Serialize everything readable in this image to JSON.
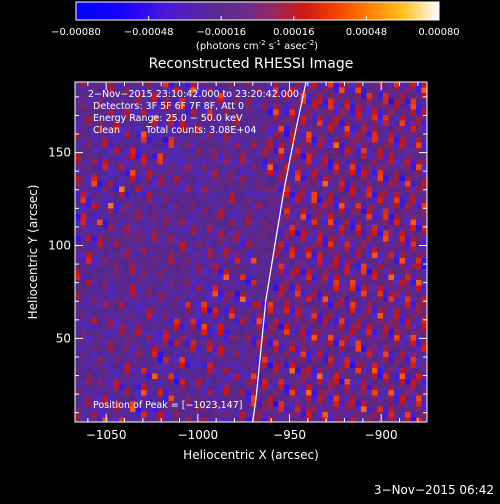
{
  "colorbar": {
    "tick_labels": [
      "-0.00080",
      "-0.00048",
      "-0.00016",
      "0.00016",
      "0.00048",
      "0.00080"
    ],
    "range": [
      -0.0008,
      0.0008
    ],
    "unit_text": "(photons cm",
    "unit_exp1": "-2",
    "unit_mid": " s",
    "unit_exp2": "-1",
    "unit_mid2": " asec",
    "unit_exp3": "-2",
    "unit_end": ")",
    "colors": [
      "#0000ff",
      "#2a0cff",
      "#5a2bd0",
      "#4c2a80",
      "#6a2a9a",
      "#8a2a70",
      "#b02030",
      "#e02000",
      "#ff5a00",
      "#ffa000",
      "#ffd040",
      "#ffffff"
    ]
  },
  "chart_data": {
    "type": "heatmap",
    "title": "Reconstructed RHESSI Image",
    "xlabel": "Heliocentric X (arcsec)",
    "ylabel": "Heliocentric Y (arcsec)",
    "xlim": [
      -1067,
      -875
    ],
    "ylim": [
      5,
      188
    ],
    "x_ticks": [
      -1050,
      -1000,
      -950,
      -900
    ],
    "x_tick_labels": [
      "−1050",
      "−1000",
      "−950",
      "−900"
    ],
    "y_ticks": [
      50,
      100,
      150
    ],
    "y_tick_labels": [
      "50",
      "100",
      "150"
    ],
    "limb_curve_x": [
      -941,
      -947,
      -953,
      -958,
      -963,
      -966,
      -968,
      -970
    ],
    "limb_curve_y": [
      188,
      160,
      130,
      100,
      70,
      40,
      20,
      5
    ],
    "peak": [
      -1023,
      147
    ],
    "annotations": {
      "time": "2−Nov−2015 23:10:42.000 to 23:20:42.000",
      "detectors": "Detectors: 3F 5F 6F 7F 8F, Att 0",
      "energy": "Energy Range: 25.0 − 50.0 keV",
      "clean_label": "Clean",
      "counts": "Total counts: 3.08E+04",
      "peak_label": "Position of Peak = [−1023,147]"
    }
  },
  "footer": {
    "date": "3−Nov−2015 06:42"
  }
}
